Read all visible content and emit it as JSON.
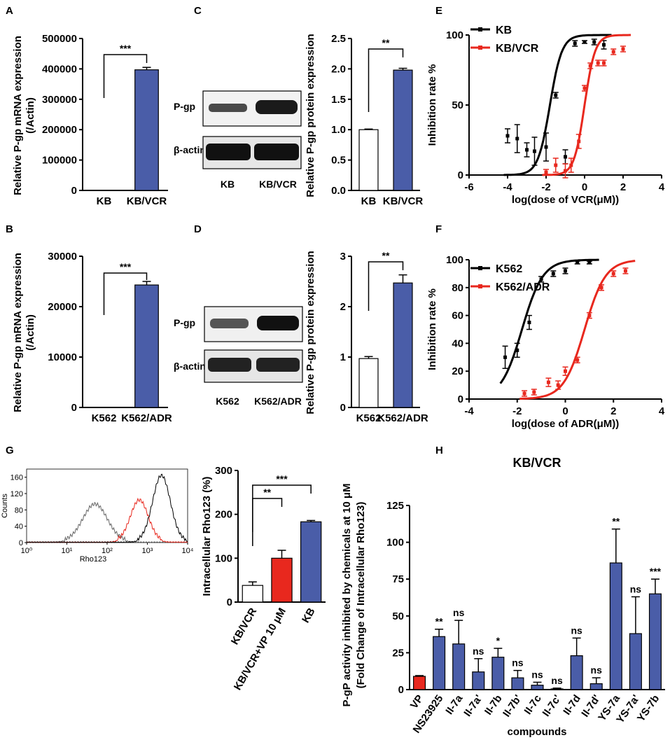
{
  "colors": {
    "blue": "#4a5da8",
    "red": "#e8281e",
    "black": "#000000",
    "white": "#ffffff"
  },
  "chart_data": [
    {
      "id": "A",
      "label": "A",
      "type": "bar",
      "categories": [
        "KB",
        "KB/VCR"
      ],
      "values": [
        0,
        397000
      ],
      "errors": [
        0,
        8000
      ],
      "ylabel": "Relative P-gp mRNA expression (/Actin)",
      "ylim": [
        0,
        500000
      ],
      "yticks": [
        "0",
        "100000",
        "200000",
        "300000",
        "400000",
        "500000"
      ],
      "significance": "***"
    },
    {
      "id": "B",
      "label": "B",
      "type": "bar",
      "categories": [
        "K562",
        "K562/ADR"
      ],
      "values": [
        0,
        24300
      ],
      "errors": [
        0,
        700
      ],
      "ylabel": "Relative P-gp mRNA expression (/Actin)",
      "ylim": [
        0,
        30000
      ],
      "yticks": [
        "0",
        "10000",
        "20000",
        "30000"
      ],
      "significance": "***"
    },
    {
      "id": "C",
      "label": "C",
      "type": "bar",
      "categories": [
        "KB",
        "KB/VCR"
      ],
      "values": [
        1.0,
        1.98
      ],
      "errors": [
        0.01,
        0.03
      ],
      "ylabel": "Relative P-gp protein expression",
      "ylim": [
        0,
        2.5
      ],
      "yticks": [
        "0.0",
        "0.5",
        "1.0",
        "1.5",
        "2.0",
        "2.5"
      ],
      "significance": "**",
      "blot": {
        "rows": [
          "P-gp",
          "β-actin"
        ],
        "lanes": [
          "KB",
          "KB/VCR"
        ]
      }
    },
    {
      "id": "D",
      "label": "D",
      "type": "bar",
      "categories": [
        "K562",
        "K562/ADR"
      ],
      "values": [
        0.97,
        2.47
      ],
      "errors": [
        0.04,
        0.16
      ],
      "ylabel": "Relative P-gp protein expression",
      "ylim": [
        0,
        3
      ],
      "yticks": [
        "0",
        "1",
        "2",
        "3"
      ],
      "significance": "**",
      "blot": {
        "rows": [
          "P-gp",
          "β-actin"
        ],
        "lanes": [
          "K562",
          "K562/ADR"
        ]
      }
    },
    {
      "id": "E",
      "label": "E",
      "type": "scatter",
      "xlabel": "log(dose of VCR(μM))",
      "ylabel": "Inhibition rate %",
      "xlim": [
        -6,
        4
      ],
      "ylim": [
        0,
        100
      ],
      "xticks": [
        "-6",
        "-4",
        "-2",
        "0",
        "2",
        "4"
      ],
      "yticks": [
        "0",
        "50",
        "100"
      ],
      "series": [
        {
          "name": "KB",
          "color": "#000000",
          "x": [
            -4,
            -3.5,
            -3,
            -2.6,
            -2,
            -1.5,
            -1,
            -0.5,
            0,
            0.5,
            1
          ],
          "y": [
            28,
            26,
            18,
            17,
            20,
            57,
            13,
            94,
            95,
            95,
            93
          ],
          "err": [
            5,
            10,
            5,
            10,
            10,
            2,
            5,
            2,
            1,
            2,
            3
          ],
          "fit": {
            "bottom": 0,
            "top": 100,
            "logIC50": -1.8,
            "hill": 1.4
          }
        },
        {
          "name": "KB/VCR",
          "color": "#e8281e",
          "x": [
            -2,
            -1.5,
            -1,
            -0.7,
            -0.3,
            0,
            0.3,
            0.7,
            1,
            1.5,
            2
          ],
          "y": [
            2,
            7,
            3,
            7,
            24,
            62,
            78,
            80,
            80,
            88,
            90
          ],
          "err": [
            2,
            5,
            5,
            5,
            5,
            2,
            2,
            2,
            2,
            2,
            2
          ],
          "fit": {
            "bottom": 0,
            "top": 100,
            "logIC50": 0,
            "hill": 1.6
          }
        }
      ]
    },
    {
      "id": "F",
      "label": "F",
      "type": "scatter",
      "xlabel": "log(dose of ADR(μM))",
      "ylabel": "Inhibition rate %",
      "xlim": [
        -4,
        4
      ],
      "ylim": [
        0,
        100
      ],
      "xticks": [
        "-4",
        "-2",
        "0",
        "2",
        "4"
      ],
      "yticks": [
        "0",
        "20",
        "40",
        "60",
        "80",
        "100"
      ],
      "series": [
        {
          "name": "K562",
          "color": "#000000",
          "x": [
            -2.5,
            -2,
            -1.5,
            -1,
            -0.5,
            0,
            0.5,
            1
          ],
          "y": [
            30,
            35,
            55,
            86,
            90,
            92,
            98,
            98
          ],
          "err": [
            8,
            5,
            5,
            2,
            2,
            2,
            1,
            1
          ],
          "fit": {
            "bottom": 0,
            "top": 100,
            "logIC50": -1.8,
            "hill": 1.0
          }
        },
        {
          "name": "K562/ADR",
          "color": "#e8281e",
          "x": [
            -1.7,
            -1.3,
            -0.7,
            -0.3,
            0,
            0.5,
            1,
            1.5,
            2,
            2.5
          ],
          "y": [
            4,
            5,
            12,
            10,
            20,
            28,
            60,
            80,
            90,
            92
          ],
          "err": [
            2,
            2,
            3,
            3,
            3,
            2,
            2,
            2,
            2,
            2
          ],
          "fit": {
            "bottom": 0,
            "top": 100,
            "logIC50": 0.8,
            "hill": 1.0
          }
        }
      ]
    },
    {
      "id": "G-hist",
      "label": "G",
      "type": "line",
      "xlabel": "Rho123",
      "ylabel": "Counts",
      "xticks": [
        "10⁰",
        "10¹",
        "10²",
        "10³",
        "10⁴"
      ],
      "yticks": [
        "0",
        "40",
        "80",
        "120",
        "160"
      ],
      "ylim": [
        0,
        180
      ],
      "series": [
        {
          "name": "KB/VCR",
          "color": "#666666",
          "peak_log": 1.7,
          "peak": 90
        },
        {
          "name": "KB/VCR+VP 10 μM",
          "color": "#e8281e",
          "peak_log": 2.8,
          "peak": 100
        },
        {
          "name": "KB",
          "color": "#000000",
          "peak_log": 3.35,
          "peak": 160
        }
      ]
    },
    {
      "id": "G-bar",
      "type": "bar",
      "categories": [
        "KB/VCR",
        "KB/VCR+VP 10 μM",
        "KB"
      ],
      "values": [
        38,
        100,
        183
      ],
      "errors": [
        8,
        18,
        3
      ],
      "bar_colors": [
        "#ffffff",
        "#e8281e",
        "#4a5da8"
      ],
      "ylabel": "Intracellular Rho123 (%)",
      "ylim": [
        0,
        300
      ],
      "yticks": [
        "0",
        "100",
        "200",
        "300"
      ],
      "significance": [
        "**",
        "***"
      ]
    },
    {
      "id": "H",
      "label": "H",
      "type": "bar",
      "title": "KB/VCR",
      "xlabel": "compounds",
      "ylabel": [
        "P-gP activity inhibited by chemicals at 10 μM",
        "(Fold Change of Intracellular Rho123)"
      ],
      "ylim": [
        0,
        125
      ],
      "yticks": [
        "0",
        "25",
        "50",
        "75",
        "100",
        "125"
      ],
      "categories": [
        "VP",
        "NS23925",
        "II-7a",
        "II-7a'",
        "II-7b",
        "II-7b'",
        "II-7c",
        "II-7c'",
        "II-7d",
        "II-7d'",
        "YS-7a",
        "YS-7a'",
        "YS-7b"
      ],
      "values": [
        9,
        36,
        31,
        12,
        22,
        8,
        3,
        0.5,
        23,
        4,
        86,
        38,
        65
      ],
      "errors": [
        0.5,
        5,
        16,
        9,
        6,
        5,
        2,
        0.5,
        12,
        4,
        23,
        25,
        10
      ],
      "significance": [
        "",
        "**",
        "ns",
        "ns",
        "*",
        "ns",
        "ns",
        "ns",
        "ns",
        "ns",
        "**",
        "ns",
        "***"
      ]
    }
  ]
}
